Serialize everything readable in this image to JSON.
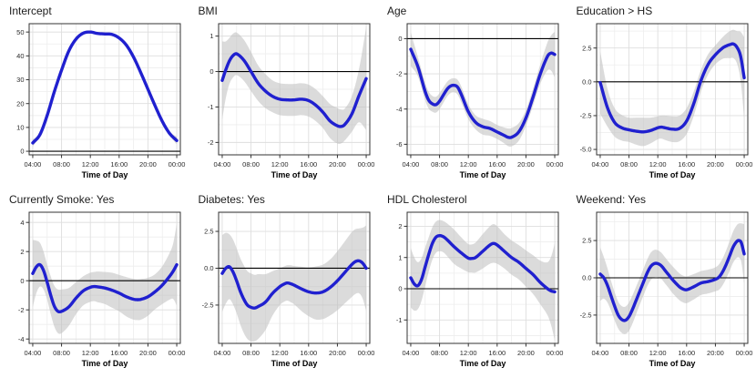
{
  "page": {
    "background": "#ffffff"
  },
  "styles": {
    "line_color": "#2020CF",
    "band_color": "#BDBDBD",
    "band_opacity": 0.55,
    "grid_major": "#DEDEDE",
    "grid_minor": "#EDEDED",
    "panel_border": "#333333",
    "refline_color": "#000000",
    "tick_color": "#333333",
    "tick_label_color": "#2b2b2b",
    "title_color": "#1b1b1b"
  },
  "chart_data": [
    {
      "type": "line",
      "title": "Intercept",
      "xlabel": "Time of Day",
      "xlim": [
        3.5,
        24.5
      ],
      "ylim": [
        -1.5,
        53.5
      ],
      "x_tick_values": [
        4,
        8,
        12,
        16,
        20,
        24
      ],
      "x_tick_labels": [
        "04:00",
        "08:00",
        "12:00",
        "16:00",
        "20:00",
        "00:00"
      ],
      "y_tick_values": [
        0,
        10,
        20,
        30,
        40,
        50
      ],
      "y_tick_labels": [
        "0",
        "10",
        "20",
        "30",
        "40",
        "50"
      ],
      "refline_y": 0,
      "x": [
        4,
        5,
        6,
        7,
        8,
        9,
        10,
        11,
        12,
        13,
        14,
        15,
        16,
        17,
        18,
        19,
        20,
        21,
        22,
        23,
        24
      ],
      "y": [
        3.5,
        7,
        15,
        25,
        34,
        42,
        47,
        49.5,
        50,
        49.4,
        49.2,
        49,
        47.5,
        44.5,
        39.5,
        33,
        26,
        19,
        12.5,
        7.5,
        4.5
      ],
      "ci_halfwidth": [
        1.5,
        0.7,
        0.5,
        0.5,
        0.5,
        0.5,
        0.5,
        0.5,
        0.5,
        0.5,
        0.5,
        0.5,
        0.5,
        0.5,
        0.5,
        0.5,
        0.5,
        0.5,
        0.5,
        0.8,
        1.6
      ]
    },
    {
      "type": "line",
      "title": "BMI",
      "xlabel": "Time of Day",
      "xlim": [
        3.5,
        24.5
      ],
      "ylim": [
        -2.35,
        1.35
      ],
      "x_tick_values": [
        4,
        8,
        12,
        16,
        20,
        24
      ],
      "x_tick_labels": [
        "04:00",
        "08:00",
        "12:00",
        "16:00",
        "20:00",
        "00:00"
      ],
      "y_tick_values": [
        -2,
        -1,
        0,
        1
      ],
      "y_tick_labels": [
        "-2",
        "-1",
        "0",
        "1"
      ],
      "refline_y": 0,
      "x": [
        4,
        4.5,
        5,
        5.5,
        6,
        7,
        8,
        9,
        10,
        11,
        12,
        13,
        14,
        15,
        16,
        17,
        18,
        19,
        20,
        20.5,
        21,
        22,
        23,
        24
      ],
      "y": [
        -0.25,
        0.05,
        0.3,
        0.45,
        0.5,
        0.32,
        0,
        -0.33,
        -0.55,
        -0.7,
        -0.78,
        -0.8,
        -0.8,
        -0.78,
        -0.82,
        -0.95,
        -1.15,
        -1.4,
        -1.53,
        -1.55,
        -1.5,
        -1.2,
        -0.68,
        -0.2
      ],
      "ci_halfwidth": [
        1.1,
        0.8,
        0.65,
        0.62,
        0.6,
        0.58,
        0.55,
        0.5,
        0.48,
        0.45,
        0.45,
        0.45,
        0.45,
        0.45,
        0.45,
        0.45,
        0.45,
        0.48,
        0.5,
        0.48,
        0.45,
        0.5,
        0.75,
        1.45
      ]
    },
    {
      "type": "line",
      "title": "Age",
      "xlabel": "Time of Day",
      "xlim": [
        3.5,
        24.5
      ],
      "ylim": [
        -6.6,
        0.85
      ],
      "x_tick_values": [
        4,
        8,
        12,
        16,
        20,
        24
      ],
      "x_tick_labels": [
        "04:00",
        "08:00",
        "12:00",
        "16:00",
        "20:00",
        "00:00"
      ],
      "y_tick_values": [
        -6,
        -4,
        -2,
        0
      ],
      "y_tick_labels": [
        "-6",
        "-4",
        "-2",
        "0"
      ],
      "refline_y": 0,
      "x": [
        4,
        5,
        6,
        6.5,
        7,
        7.5,
        8,
        9,
        9.5,
        10,
        10.5,
        11,
        12,
        13,
        14,
        15,
        16,
        17,
        17.5,
        18,
        19,
        20,
        21,
        22,
        23,
        23.5,
        24
      ],
      "y": [
        -0.6,
        -1.6,
        -3,
        -3.5,
        -3.7,
        -3.75,
        -3.55,
        -2.9,
        -2.7,
        -2.65,
        -2.75,
        -3.15,
        -4.15,
        -4.75,
        -5,
        -5.1,
        -5.3,
        -5.5,
        -5.6,
        -5.6,
        -5.3,
        -4.5,
        -3.3,
        -2,
        -1,
        -0.82,
        -0.9
      ],
      "ci_halfwidth": [
        0.95,
        0.55,
        0.5,
        0.48,
        0.45,
        0.45,
        0.45,
        0.42,
        0.4,
        0.4,
        0.42,
        0.45,
        0.42,
        0.4,
        0.45,
        0.42,
        0.4,
        0.45,
        0.5,
        0.52,
        0.5,
        0.45,
        0.48,
        0.55,
        0.8,
        1,
        1.3
      ]
    },
    {
      "type": "line",
      "title": "Education > HS",
      "xlabel": "Time of Day",
      "xlim": [
        3.5,
        24.5
      ],
      "ylim": [
        -5.4,
        4.3
      ],
      "x_tick_values": [
        4,
        8,
        12,
        16,
        20,
        24
      ],
      "x_tick_labels": [
        "04:00",
        "08:00",
        "12:00",
        "16:00",
        "20:00",
        "00:00"
      ],
      "y_tick_values": [
        -5,
        -2.5,
        0,
        2.5
      ],
      "y_tick_labels": [
        "-5.0",
        "-2.5",
        "0.0",
        "2.5"
      ],
      "refline_y": 0,
      "x": [
        4,
        5,
        6,
        7,
        8,
        9,
        10,
        11,
        12,
        12.5,
        13,
        14,
        15,
        16,
        17,
        18,
        19,
        20,
        21,
        21.5,
        22,
        22.5,
        23,
        23.5,
        24
      ],
      "y": [
        -0.05,
        -1.9,
        -3,
        -3.4,
        -3.55,
        -3.65,
        -3.7,
        -3.6,
        -3.4,
        -3.35,
        -3.4,
        -3.5,
        -3.45,
        -2.9,
        -1.6,
        0.1,
        1.3,
        2,
        2.5,
        2.65,
        2.75,
        2.8,
        2.55,
        1.9,
        0.3
      ],
      "ci_halfwidth": [
        2.3,
        1.4,
        1.05,
        0.95,
        0.9,
        1,
        1.05,
        0.95,
        0.85,
        0.85,
        0.9,
        0.95,
        0.95,
        0.95,
        0.9,
        0.8,
        0.75,
        0.7,
        0.8,
        0.9,
        1,
        1.05,
        1.2,
        1.8,
        3
      ]
    },
    {
      "type": "line",
      "title": "Currently Smoke: Yes",
      "xlabel": "Time of Day",
      "xlim": [
        3.5,
        24.5
      ],
      "ylim": [
        -4.3,
        4.7
      ],
      "x_tick_values": [
        4,
        8,
        12,
        16,
        20,
        24
      ],
      "x_tick_labels": [
        "04:00",
        "08:00",
        "12:00",
        "16:00",
        "20:00",
        "00:00"
      ],
      "y_tick_values": [
        -4,
        -2,
        0,
        2,
        4
      ],
      "y_tick_labels": [
        "-4",
        "-2",
        "0",
        "2",
        "4"
      ],
      "refline_y": 0,
      "x": [
        4,
        4.5,
        5,
        5.5,
        6,
        6.5,
        7,
        7.5,
        8,
        9,
        10,
        11,
        12,
        12.5,
        13,
        14,
        15,
        16,
        17,
        18,
        18.5,
        19,
        20,
        21,
        22,
        23,
        23.5,
        24
      ],
      "y": [
        0.5,
        0.95,
        1.1,
        0.7,
        -0.1,
        -1,
        -1.75,
        -2.1,
        -2.1,
        -1.8,
        -1.2,
        -0.7,
        -0.45,
        -0.4,
        -0.42,
        -0.5,
        -0.65,
        -0.85,
        -1.1,
        -1.27,
        -1.3,
        -1.28,
        -1.1,
        -0.75,
        -0.3,
        0.3,
        0.65,
        1.1
      ],
      "ci_halfwidth": [
        2.3,
        1.8,
        1.5,
        1.3,
        1.2,
        1.3,
        1.4,
        1.5,
        1.5,
        1.3,
        1.1,
        1,
        1,
        1,
        1.05,
        1.1,
        1.2,
        1.25,
        1.35,
        1.4,
        1.4,
        1.4,
        1.3,
        1.2,
        1.3,
        1.6,
        1.9,
        2.8
      ]
    },
    {
      "type": "line",
      "title": "Diabetes: Yes",
      "xlabel": "Time of Day",
      "xlim": [
        3.5,
        24.5
      ],
      "ylim": [
        -5.1,
        3.8
      ],
      "x_tick_values": [
        4,
        8,
        12,
        16,
        20,
        24
      ],
      "x_tick_labels": [
        "04:00",
        "08:00",
        "12:00",
        "16:00",
        "20:00",
        "00:00"
      ],
      "y_tick_values": [
        -2.5,
        0,
        2.5
      ],
      "y_tick_labels": [
        "-2.5",
        "0.0",
        "2.5"
      ],
      "refline_y": 0,
      "x": [
        4,
        4.5,
        5,
        5.5,
        6,
        6.5,
        7,
        7.5,
        8,
        8.5,
        9,
        10,
        11,
        12,
        12.5,
        13,
        13.5,
        14,
        15,
        16,
        17,
        18,
        19,
        20,
        21,
        22,
        22.5,
        23,
        23.5,
        24
      ],
      "y": [
        -0.35,
        0,
        0.1,
        -0.25,
        -0.85,
        -1.55,
        -2.1,
        -2.5,
        -2.65,
        -2.7,
        -2.6,
        -2.3,
        -1.7,
        -1.25,
        -1.1,
        -1,
        -1.05,
        -1.15,
        -1.4,
        -1.6,
        -1.68,
        -1.6,
        -1.3,
        -0.85,
        -0.3,
        0.25,
        0.45,
        0.5,
        0.35,
        0
      ],
      "ci_halfwidth": [
        2.6,
        2.4,
        2.2,
        2.2,
        2.2,
        2.25,
        2.3,
        2.3,
        2.3,
        2.25,
        2.2,
        1.9,
        1.5,
        1.25,
        1.2,
        1.2,
        1.25,
        1.3,
        1.5,
        1.65,
        1.8,
        1.85,
        1.9,
        2,
        2.1,
        2.2,
        2.2,
        2.2,
        2.4,
        2.9
      ]
    },
    {
      "type": "line",
      "title": "HDL Cholesterol",
      "xlabel": "Time of Day",
      "xlim": [
        3.5,
        24.5
      ],
      "ylim": [
        -1.75,
        2.45
      ],
      "x_tick_values": [
        4,
        8,
        12,
        16,
        20,
        24
      ],
      "x_tick_labels": [
        "04:00",
        "08:00",
        "12:00",
        "16:00",
        "20:00",
        "00:00"
      ],
      "y_tick_values": [
        -1,
        0,
        1,
        2
      ],
      "y_tick_labels": [
        "-1",
        "0",
        "1",
        "2"
      ],
      "refline_y": 0,
      "x": [
        4,
        4.5,
        5,
        5.5,
        6,
        6.5,
        7,
        7.5,
        8,
        8.5,
        9,
        10,
        11,
        12,
        12.5,
        13,
        14,
        15,
        15.5,
        16,
        17,
        18,
        19,
        20,
        21,
        22,
        23,
        23.5,
        24
      ],
      "y": [
        0.35,
        0.15,
        0.1,
        0.3,
        0.7,
        1.1,
        1.45,
        1.65,
        1.7,
        1.67,
        1.58,
        1.35,
        1.15,
        0.98,
        0.97,
        1,
        1.2,
        1.4,
        1.45,
        1.4,
        1.2,
        1,
        0.85,
        0.65,
        0.45,
        0.2,
        0,
        -0.07,
        -0.1
      ],
      "ci_halfwidth": [
        0.95,
        0.85,
        0.75,
        0.68,
        0.62,
        0.55,
        0.52,
        0.5,
        0.5,
        0.5,
        0.52,
        0.55,
        0.5,
        0.45,
        0.45,
        0.48,
        0.55,
        0.6,
        0.62,
        0.6,
        0.55,
        0.55,
        0.55,
        0.58,
        0.62,
        0.7,
        0.85,
        1.1,
        1.55
      ]
    },
    {
      "type": "line",
      "title": "Weekend: Yes",
      "xlabel": "Time of Day",
      "xlim": [
        3.5,
        24.5
      ],
      "ylim": [
        -4.4,
        4.4
      ],
      "x_tick_values": [
        4,
        8,
        12,
        16,
        20,
        24
      ],
      "x_tick_labels": [
        "04:00",
        "08:00",
        "12:00",
        "16:00",
        "20:00",
        "00:00"
      ],
      "y_tick_values": [
        -2.5,
        0,
        2.5
      ],
      "y_tick_labels": [
        "-2.5",
        "0.0",
        "2.5"
      ],
      "refline_y": 0,
      "x": [
        4,
        4.5,
        5,
        5.5,
        6,
        6.5,
        7,
        7.5,
        8,
        8.5,
        9,
        9.5,
        10,
        10.5,
        11,
        11.5,
        12,
        12.5,
        13,
        13.5,
        14,
        15,
        15.5,
        16,
        17,
        18,
        19,
        20,
        20.5,
        21,
        21.5,
        22,
        22.5,
        23,
        23.3,
        23.6,
        24
      ],
      "y": [
        0.25,
        0,
        -0.5,
        -1.2,
        -1.9,
        -2.5,
        -2.8,
        -2.85,
        -2.6,
        -2.1,
        -1.5,
        -0.9,
        -0.3,
        0.3,
        0.75,
        0.95,
        0.95,
        0.8,
        0.5,
        0.2,
        -0.1,
        -0.6,
        -0.75,
        -0.8,
        -0.6,
        -0.35,
        -0.25,
        -0.1,
        0.05,
        0.4,
        0.9,
        1.5,
        2.1,
        2.45,
        2.5,
        2.35,
        1.6
      ],
      "ci_halfwidth": [
        1.8,
        1.4,
        1.15,
        1,
        0.95,
        0.9,
        0.9,
        0.92,
        0.95,
        0.95,
        0.92,
        0.9,
        0.9,
        0.9,
        0.92,
        0.92,
        0.9,
        0.88,
        0.88,
        0.88,
        0.9,
        0.9,
        0.9,
        0.9,
        0.85,
        0.8,
        0.8,
        0.8,
        0.85,
        0.9,
        0.95,
        1,
        1.05,
        1.1,
        1.15,
        1.3,
        2
      ]
    }
  ]
}
